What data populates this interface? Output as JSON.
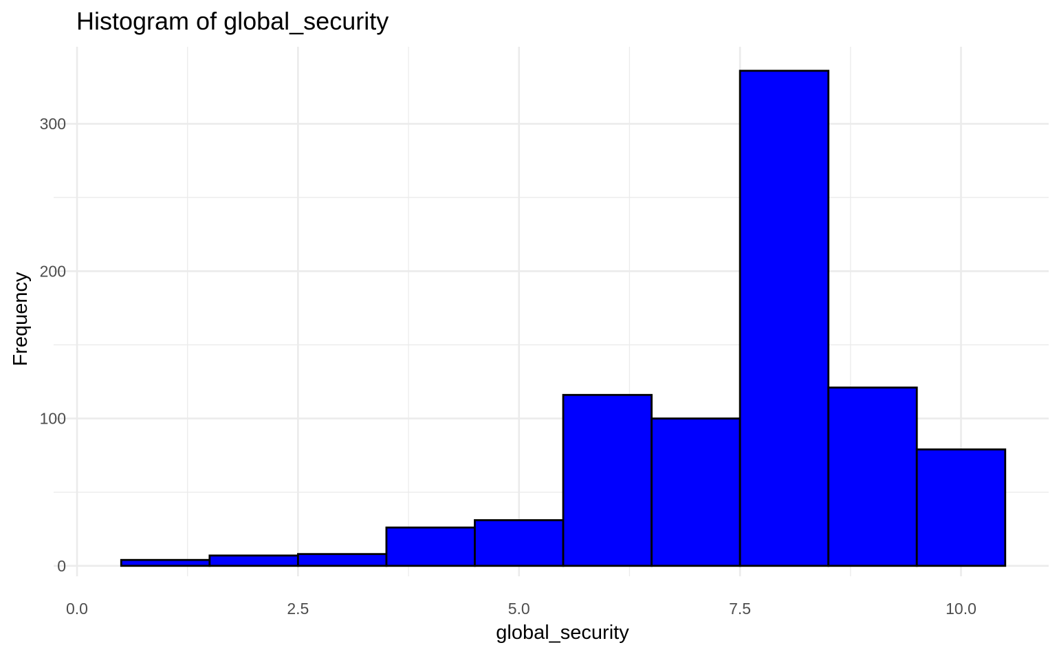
{
  "chart_data": {
    "type": "histogram",
    "title": "Histogram of global_security",
    "xlabel": "global_security",
    "ylabel": "Frequency",
    "xlim": [
      0,
      11
    ],
    "ylim": [
      -15,
      350
    ],
    "x_ticks": [
      {
        "value": 0,
        "label": "0.0"
      },
      {
        "value": 2.5,
        "label": "2.5"
      },
      {
        "value": 5,
        "label": "5.0"
      },
      {
        "value": 7.5,
        "label": "7.5"
      },
      {
        "value": 10,
        "label": "10.0"
      }
    ],
    "y_ticks": [
      {
        "value": 0,
        "label": "0"
      },
      {
        "value": 100,
        "label": "100"
      },
      {
        "value": 200,
        "label": "200"
      },
      {
        "value": 300,
        "label": "300"
      }
    ],
    "x_minor": [
      1.25,
      3.75,
      6.25,
      8.75
    ],
    "y_minor": [
      50,
      150,
      250
    ],
    "bins": [
      {
        "x0": 0.5,
        "x1": 1.5,
        "count": 4
      },
      {
        "x0": 1.5,
        "x1": 2.5,
        "count": 7
      },
      {
        "x0": 2.5,
        "x1": 3.5,
        "count": 8
      },
      {
        "x0": 3.5,
        "x1": 4.5,
        "count": 26
      },
      {
        "x0": 4.5,
        "x1": 5.5,
        "count": 31
      },
      {
        "x0": 5.5,
        "x1": 6.5,
        "count": 116
      },
      {
        "x0": 6.5,
        "x1": 7.5,
        "count": 100
      },
      {
        "x0": 7.5,
        "x1": 8.5,
        "count": 336
      },
      {
        "x0": 8.5,
        "x1": 9.5,
        "count": 121
      },
      {
        "x0": 9.5,
        "x1": 10.5,
        "count": 79
      }
    ],
    "fill_color": "#0000ff",
    "outline_color": "#000000",
    "grid": true,
    "legend": "none"
  }
}
